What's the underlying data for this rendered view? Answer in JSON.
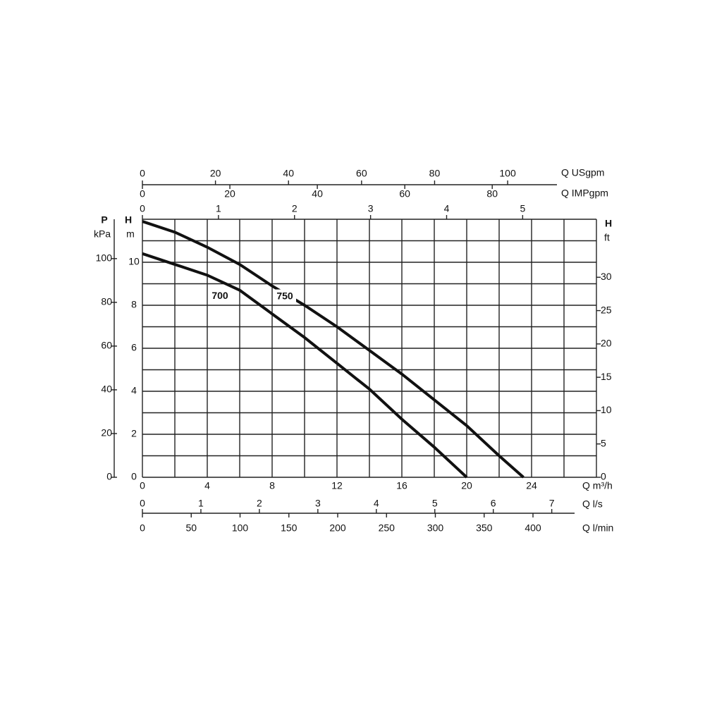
{
  "chart_data": {
    "type": "line",
    "xlabel": "Q m³/h",
    "ylabel": [
      "H",
      "m"
    ],
    "x": [
      0,
      2,
      4,
      6,
      8,
      10,
      12,
      14,
      16,
      18,
      20,
      22,
      23.5
    ],
    "series": [
      {
        "name": "750",
        "color": "#111111",
        "values": [
          11.9,
          11.4,
          10.7,
          9.9,
          8.9,
          8.0,
          7.0,
          5.9,
          4.8,
          3.6,
          2.4,
          1.0,
          0
        ]
      },
      {
        "name": "700",
        "color": "#111111",
        "values": [
          10.4,
          9.9,
          9.4,
          8.7,
          7.6,
          6.5,
          5.3,
          4.1,
          2.7,
          1.4,
          0,
          null,
          null
        ]
      }
    ],
    "xlim": [
      0,
      28
    ],
    "xticks": [
      0,
      4,
      8,
      12,
      16,
      20,
      24
    ],
    "ylim": [
      0,
      12
    ],
    "yticks": [
      0,
      2,
      4,
      6,
      8,
      10
    ],
    "xgrid": [
      0,
      2,
      4,
      6,
      8,
      10,
      12,
      14,
      16,
      18,
      20,
      22,
      24,
      26,
      28
    ],
    "ygrid": [
      0,
      1,
      2,
      3,
      4,
      5,
      6,
      7,
      8,
      9,
      10,
      11,
      12
    ],
    "p_axis": {
      "label": [
        "P",
        "kPa"
      ],
      "lim": [
        0,
        118
      ],
      "ticks": [
        0,
        20,
        40,
        60,
        80,
        100
      ]
    },
    "ft_axis": {
      "label": [
        "H",
        "ft"
      ],
      "lim": [
        0,
        38.7
      ],
      "ticks": [
        0,
        5,
        10,
        15,
        20,
        25,
        30
      ]
    },
    "top_axes": [
      {
        "label": "Q USgpm",
        "lim": [
          0,
          113.5
        ],
        "ticks": [
          0,
          20,
          40,
          60,
          80,
          100
        ]
      },
      {
        "label": "Q IMPgpm",
        "lim": [
          0,
          94.8
        ],
        "ticks": [
          0,
          20,
          40,
          60,
          80
        ]
      },
      {
        "lim": [
          0,
          5.97
        ],
        "ticks": [
          0,
          1,
          2,
          3,
          4,
          5
        ]
      }
    ],
    "bottom_axes": [
      {
        "label": "Q l/s",
        "lim": [
          0,
          7.39
        ],
        "ticks": [
          0,
          1,
          2,
          3,
          4,
          5,
          6,
          7
        ]
      },
      {
        "label": "Q l/min",
        "lim": [
          0,
          442.6
        ],
        "ticks": [
          0,
          50,
          100,
          150,
          200,
          250,
          300,
          350,
          400
        ]
      }
    ]
  }
}
